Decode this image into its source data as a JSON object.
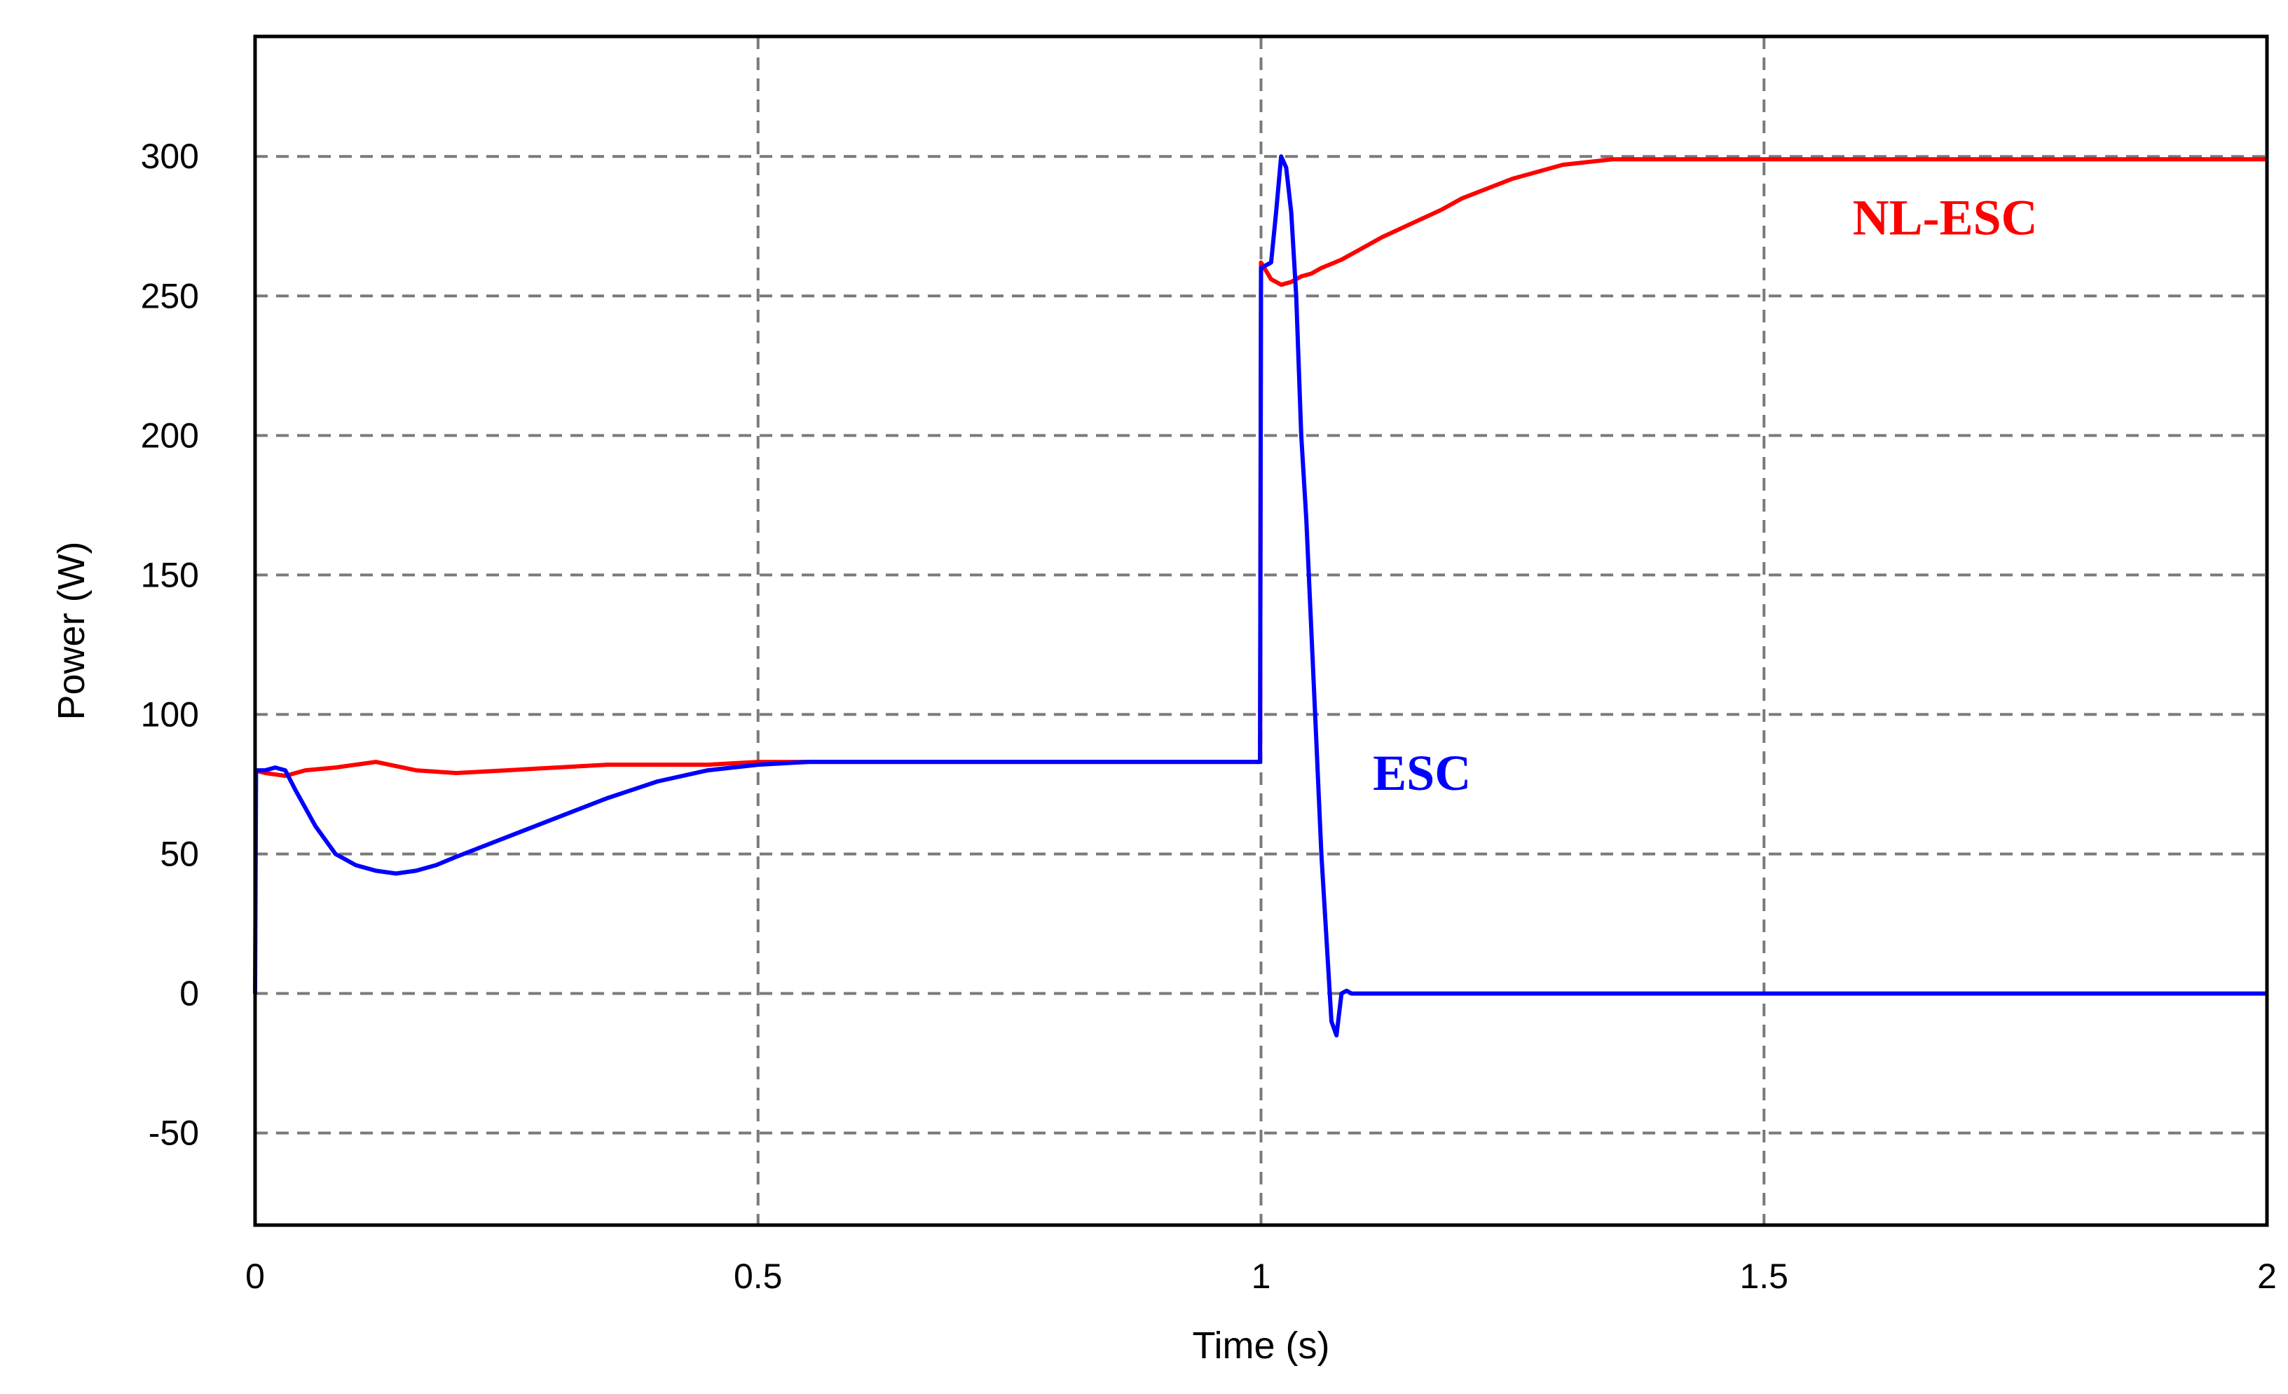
{
  "chart_data": {
    "type": "line",
    "title": "",
    "xlabel": "Time (s)",
    "ylabel": "Power (W)",
    "xlim": [
      0,
      2
    ],
    "ylim": [
      -83,
      343
    ],
    "xticks": [
      0,
      0.5,
      1,
      1.5,
      2
    ],
    "xtick_labels": [
      "0",
      "0.5",
      "1",
      "1.5",
      "2"
    ],
    "yticks": [
      -50,
      0,
      50,
      100,
      150,
      200,
      250,
      300
    ],
    "ytick_labels": [
      "-50",
      "0",
      "50",
      "100",
      "150",
      "200",
      "250",
      "300"
    ],
    "grid": true,
    "legend": "none",
    "series": [
      {
        "name": "NL-ESC",
        "color": "#ff0000",
        "x": [
          0,
          0.01,
          0.03,
          0.05,
          0.08,
          0.12,
          0.16,
          0.2,
          0.25,
          0.3,
          0.35,
          0.4,
          0.45,
          0.5,
          0.55,
          0.6,
          0.66,
          0.7,
          0.8,
          0.9,
          0.999,
          1.0,
          1.01,
          1.02,
          1.03,
          1.04,
          1.05,
          1.06,
          1.08,
          1.1,
          1.12,
          1.15,
          1.18,
          1.2,
          1.25,
          1.3,
          1.35,
          1.4,
          1.45,
          1.5,
          1.6,
          1.7,
          1.8,
          1.9,
          2.0
        ],
        "y": [
          80,
          79,
          78,
          80,
          81,
          83,
          80,
          79,
          80,
          81,
          82,
          82,
          82,
          83,
          83,
          83,
          83,
          83,
          83,
          83,
          83,
          262,
          256,
          254,
          255,
          257,
          258,
          260,
          263,
          267,
          271,
          276,
          281,
          285,
          292,
          297,
          299,
          299,
          299,
          299,
          299,
          299,
          299,
          299,
          299
        ]
      },
      {
        "name": "ESC",
        "color": "#0000ff",
        "x": [
          0,
          0.001,
          0.01,
          0.02,
          0.03,
          0.04,
          0.06,
          0.08,
          0.1,
          0.12,
          0.14,
          0.16,
          0.18,
          0.2,
          0.25,
          0.3,
          0.35,
          0.4,
          0.45,
          0.5,
          0.55,
          0.6,
          0.7,
          0.8,
          0.9,
          0.999,
          1.0,
          1.01,
          1.015,
          1.02,
          1.025,
          1.03,
          1.035,
          1.04,
          1.045,
          1.05,
          1.055,
          1.06,
          1.065,
          1.07,
          1.075,
          1.08,
          1.085,
          1.09,
          1.1,
          1.2,
          1.3,
          1.4,
          1.5,
          1.6,
          1.7,
          1.8,
          1.9,
          2.0
        ],
        "y": [
          0,
          80,
          80,
          81,
          80,
          73,
          60,
          50,
          46,
          44,
          43,
          44,
          46,
          49,
          56,
          63,
          70,
          76,
          80,
          82,
          83,
          83,
          83,
          83,
          83,
          83,
          260,
          262,
          280,
          300,
          296,
          280,
          250,
          200,
          170,
          130,
          90,
          50,
          20,
          -10,
          -15,
          0,
          1,
          0,
          0,
          0,
          0,
          0,
          0,
          0,
          0,
          0,
          0,
          0
        ]
      }
    ],
    "annotations": [
      {
        "text": "NL-ESC",
        "x": 1.68,
        "y": 272,
        "color": "#ff0000"
      },
      {
        "text": "ESC",
        "x": 1.16,
        "y": 73,
        "color": "#0000ff"
      }
    ]
  }
}
